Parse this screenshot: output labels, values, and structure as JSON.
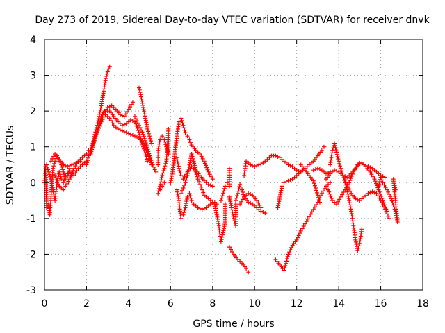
{
  "chart_data": {
    "type": "scatter",
    "title": "Day 273 of 2019, Sidereal Day-to-day VTEC variation (SDTVAR) for receiver dnvk",
    "xlabel": "GPS time / hours",
    "ylabel": "SDTVAR / TECUs",
    "xlim": [
      0,
      18
    ],
    "ylim": [
      -3,
      4
    ],
    "xticks": [
      0,
      2,
      4,
      6,
      8,
      10,
      12,
      14,
      16,
      18
    ],
    "yticks": [
      -3,
      -2,
      -1,
      0,
      1,
      2,
      3,
      4
    ],
    "grid": true,
    "marker": "plus",
    "color": "#ff0000",
    "tracks": [
      [
        [
          0.0,
          0.0
        ],
        [
          0.05,
          0.45
        ],
        [
          0.1,
          -0.7
        ]
      ],
      [
        [
          0.1,
          0.5
        ],
        [
          0.2,
          0.3
        ],
        [
          0.3,
          0.1
        ],
        [
          0.4,
          -0.2
        ],
        [
          0.5,
          -0.5
        ],
        [
          0.6,
          0.0
        ],
        [
          0.7,
          0.3
        ],
        [
          0.8,
          0.1
        ],
        [
          0.9,
          0.0
        ],
        [
          1.0,
          0.2
        ],
        [
          1.2,
          0.3
        ],
        [
          1.4,
          0.2
        ],
        [
          1.6,
          0.4
        ],
        [
          1.8,
          0.5
        ],
        [
          2.0,
          0.6
        ]
      ],
      [
        [
          0.2,
          -0.6
        ],
        [
          0.25,
          -0.9
        ],
        [
          0.3,
          -0.5
        ],
        [
          0.4,
          0.4
        ],
        [
          0.5,
          0.6
        ],
        [
          0.6,
          0.75
        ],
        [
          0.7,
          0.6
        ],
        [
          0.8,
          0.5
        ],
        [
          0.9,
          0.3
        ],
        [
          1.0,
          0.1
        ],
        [
          1.1,
          0.2
        ],
        [
          1.2,
          0.4
        ]
      ],
      [
        [
          0.3,
          0.6
        ],
        [
          0.5,
          0.8
        ],
        [
          0.7,
          0.65
        ],
        [
          0.9,
          0.5
        ],
        [
          1.1,
          0.45
        ],
        [
          1.3,
          0.5
        ],
        [
          1.5,
          0.55
        ],
        [
          1.7,
          0.6
        ]
      ],
      [
        [
          0.5,
          0.2
        ],
        [
          0.7,
          -0.1
        ],
        [
          0.9,
          -0.2
        ],
        [
          1.0,
          -0.1
        ],
        [
          1.2,
          0.1
        ],
        [
          1.4,
          0.4
        ],
        [
          1.6,
          0.6
        ],
        [
          1.8,
          0.7
        ],
        [
          2.0,
          0.8
        ],
        [
          2.1,
          0.9
        ]
      ],
      [
        [
          2.0,
          0.5
        ],
        [
          2.1,
          0.75
        ],
        [
          2.2,
          0.9
        ],
        [
          2.3,
          1.1
        ],
        [
          2.4,
          1.35
        ],
        [
          2.5,
          1.6
        ],
        [
          2.6,
          1.85
        ],
        [
          2.7,
          2.15
        ],
        [
          2.8,
          2.5
        ],
        [
          2.9,
          2.85
        ],
        [
          3.0,
          3.1
        ],
        [
          3.1,
          3.25
        ]
      ],
      [
        [
          2.2,
          0.8
        ],
        [
          2.4,
          1.25
        ],
        [
          2.6,
          1.6
        ],
        [
          2.8,
          1.95
        ],
        [
          3.0,
          2.1
        ],
        [
          3.2,
          2.15
        ],
        [
          3.4,
          2.05
        ],
        [
          3.6,
          1.9
        ],
        [
          3.8,
          1.85
        ],
        [
          4.0,
          2.05
        ],
        [
          4.2,
          2.25
        ]
      ],
      [
        [
          2.3,
          1.05
        ],
        [
          2.5,
          1.4
        ],
        [
          2.7,
          1.7
        ],
        [
          2.9,
          1.9
        ],
        [
          3.1,
          1.8
        ],
        [
          3.3,
          1.6
        ],
        [
          3.5,
          1.5
        ],
        [
          3.7,
          1.45
        ],
        [
          3.9,
          1.4
        ],
        [
          4.1,
          1.35
        ],
        [
          4.3,
          1.3
        ],
        [
          4.5,
          1.25
        ],
        [
          4.7,
          1.1
        ],
        [
          4.9,
          0.85
        ],
        [
          5.1,
          0.5
        ]
      ],
      [
        [
          2.5,
          1.6
        ],
        [
          2.7,
          1.85
        ],
        [
          2.9,
          2.0
        ],
        [
          3.1,
          2.0
        ],
        [
          3.3,
          1.85
        ],
        [
          3.5,
          1.7
        ],
        [
          3.7,
          1.6
        ],
        [
          3.9,
          1.65
        ],
        [
          4.1,
          1.75
        ],
        [
          4.3,
          1.7
        ],
        [
          4.5,
          1.4
        ],
        [
          4.7,
          1.0
        ],
        [
          4.9,
          0.6
        ]
      ],
      [
        [
          4.5,
          2.65
        ],
        [
          4.6,
          2.4
        ],
        [
          4.7,
          2.1
        ],
        [
          4.8,
          1.8
        ],
        [
          4.9,
          1.5
        ],
        [
          5.0,
          1.3
        ],
        [
          5.1,
          1.1
        ]
      ],
      [
        [
          4.3,
          1.85
        ],
        [
          4.5,
          1.6
        ],
        [
          4.7,
          1.35
        ],
        [
          4.85,
          1.05
        ],
        [
          5.0,
          0.75
        ],
        [
          5.15,
          0.5
        ],
        [
          5.3,
          0.3
        ]
      ],
      [
        [
          5.4,
          0.5
        ],
        [
          5.4,
          0.9
        ],
        [
          5.5,
          1.2
        ],
        [
          5.6,
          1.3
        ],
        [
          5.7,
          1.2
        ],
        [
          5.8,
          1.0
        ],
        [
          5.9,
          0.8
        ],
        [
          5.9,
          1.5
        ],
        [
          5.8,
          0.6
        ],
        [
          5.7,
          0.4
        ],
        [
          5.6,
          0.2
        ],
        [
          5.5,
          -0.1
        ],
        [
          5.4,
          -0.3
        ],
        [
          5.5,
          -0.2
        ],
        [
          5.6,
          -0.1
        ],
        [
          5.7,
          0.0
        ]
      ],
      [
        [
          6.0,
          0.0
        ],
        [
          6.1,
          0.3
        ],
        [
          6.2,
          0.8
        ],
        [
          6.3,
          1.3
        ],
        [
          6.4,
          1.7
        ],
        [
          6.5,
          1.8
        ],
        [
          6.6,
          1.6
        ],
        [
          6.7,
          1.4
        ],
        [
          6.8,
          1.3
        ],
        [
          6.9,
          1.2
        ],
        [
          7.0,
          1.05
        ],
        [
          7.2,
          0.9
        ],
        [
          7.4,
          0.8
        ],
        [
          7.6,
          0.6
        ],
        [
          7.8,
          0.3
        ],
        [
          8.0,
          0.1
        ]
      ],
      [
        [
          6.3,
          0.7
        ],
        [
          6.4,
          0.4
        ],
        [
          6.5,
          0.2
        ],
        [
          6.6,
          0.1
        ],
        [
          6.8,
          0.3
        ],
        [
          7.0,
          0.45
        ],
        [
          7.2,
          0.35
        ],
        [
          7.4,
          0.2
        ],
        [
          7.6,
          0.05
        ],
        [
          7.8,
          -0.05
        ],
        [
          8.0,
          -0.1
        ]
      ],
      [
        [
          6.3,
          -0.2
        ],
        [
          6.4,
          -0.5
        ],
        [
          6.45,
          -0.8
        ],
        [
          6.5,
          -1.0
        ],
        [
          6.6,
          -0.9
        ],
        [
          6.7,
          -0.7
        ],
        [
          6.8,
          -0.4
        ],
        [
          6.9,
          -0.3
        ],
        [
          7.0,
          -0.5
        ],
        [
          7.1,
          -0.6
        ],
        [
          7.3,
          -0.7
        ],
        [
          7.5,
          -0.75
        ],
        [
          7.7,
          -0.7
        ],
        [
          7.9,
          -0.6
        ],
        [
          8.1,
          -0.55
        ],
        [
          8.2,
          -0.6
        ]
      ],
      [
        [
          6.5,
          -0.3
        ],
        [
          6.6,
          -0.15
        ],
        [
          6.7,
          0.0
        ],
        [
          6.8,
          0.2
        ],
        [
          6.9,
          0.5
        ],
        [
          7.0,
          0.8
        ],
        [
          7.1,
          0.6
        ],
        [
          7.2,
          0.3
        ],
        [
          7.3,
          0.1
        ],
        [
          7.4,
          -0.05
        ],
        [
          7.5,
          -0.2
        ],
        [
          7.6,
          -0.35
        ],
        [
          7.8,
          -0.45
        ],
        [
          8.0,
          -0.55
        ]
      ],
      [
        [
          8.1,
          -0.6
        ],
        [
          8.2,
          -0.9
        ],
        [
          8.3,
          -1.2
        ],
        [
          8.35,
          -1.5
        ],
        [
          8.4,
          -1.65
        ],
        [
          8.5,
          -1.4
        ],
        [
          8.6,
          -1.1
        ],
        [
          8.6,
          -0.6
        ]
      ],
      [
        [
          8.4,
          -0.5
        ],
        [
          8.5,
          -0.3
        ],
        [
          8.6,
          -0.1
        ],
        [
          8.7,
          0.0
        ],
        [
          8.8,
          -0.1
        ],
        [
          8.8,
          0.4
        ]
      ],
      [
        [
          8.8,
          -0.4
        ],
        [
          8.9,
          -0.7
        ],
        [
          9.0,
          -1.0
        ],
        [
          9.1,
          -1.2
        ],
        [
          9.1,
          -0.6
        ]
      ],
      [
        [
          9.1,
          -0.5
        ],
        [
          9.2,
          -0.3
        ],
        [
          9.3,
          -0.05
        ],
        [
          9.4,
          -0.2
        ],
        [
          9.5,
          -0.4
        ],
        [
          9.7,
          -0.55
        ],
        [
          9.9,
          -0.6
        ],
        [
          10.1,
          -0.7
        ],
        [
          10.3,
          -0.8
        ],
        [
          10.5,
          -0.85
        ]
      ],
      [
        [
          9.3,
          -0.6
        ],
        [
          9.5,
          -0.4
        ],
        [
          9.7,
          -0.3
        ],
        [
          9.9,
          -0.35
        ],
        [
          10.1,
          -0.5
        ],
        [
          10.3,
          -0.7
        ]
      ],
      [
        [
          8.8,
          -1.8
        ],
        [
          9.0,
          -2.0
        ],
        [
          9.2,
          -2.15
        ],
        [
          9.4,
          -2.25
        ],
        [
          9.6,
          -2.4
        ],
        [
          9.7,
          -2.5
        ]
      ],
      [
        [
          9.5,
          0.2
        ],
        [
          9.6,
          0.6
        ],
        [
          9.8,
          0.5
        ],
        [
          10.0,
          0.45
        ],
        [
          10.2,
          0.5
        ],
        [
          10.4,
          0.55
        ],
        [
          10.6,
          0.65
        ],
        [
          10.8,
          0.75
        ],
        [
          11.0,
          0.75
        ],
        [
          11.2,
          0.7
        ],
        [
          11.4,
          0.6
        ],
        [
          11.6,
          0.5
        ],
        [
          11.8,
          0.45
        ],
        [
          12.0,
          0.35
        ],
        [
          12.2,
          0.3
        ]
      ],
      [
        [
          11.1,
          -0.7
        ],
        [
          11.2,
          -0.4
        ],
        [
          11.3,
          -0.1
        ],
        [
          11.4,
          0.0
        ],
        [
          11.6,
          0.05
        ],
        [
          11.8,
          0.1
        ],
        [
          12.0,
          0.2
        ],
        [
          12.2,
          0.3
        ],
        [
          12.4,
          0.4
        ],
        [
          12.6,
          0.5
        ],
        [
          12.8,
          0.6
        ],
        [
          13.0,
          0.75
        ],
        [
          13.2,
          0.9
        ],
        [
          13.3,
          1.0
        ]
      ],
      [
        [
          11.0,
          -2.15
        ],
        [
          11.2,
          -2.3
        ],
        [
          11.4,
          -2.45
        ],
        [
          11.6,
          -2.0
        ],
        [
          11.8,
          -1.75
        ],
        [
          12.0,
          -1.6
        ],
        [
          12.2,
          -1.35
        ],
        [
          12.4,
          -1.15
        ],
        [
          12.6,
          -0.95
        ],
        [
          12.8,
          -0.75
        ],
        [
          13.0,
          -0.55
        ],
        [
          13.2,
          -0.3
        ],
        [
          13.4,
          -0.1
        ],
        [
          13.6,
          0.0
        ]
      ],
      [
        [
          12.2,
          0.5
        ],
        [
          12.4,
          0.35
        ],
        [
          12.6,
          0.2
        ],
        [
          12.8,
          0.05
        ],
        [
          12.9,
          -0.15
        ],
        [
          13.0,
          -0.35
        ],
        [
          13.1,
          -0.55
        ]
      ],
      [
        [
          12.8,
          0.35
        ],
        [
          13.0,
          0.4
        ],
        [
          13.2,
          0.35
        ],
        [
          13.4,
          0.25
        ],
        [
          13.6,
          0.3
        ]
      ],
      [
        [
          13.6,
          0.5
        ],
        [
          13.7,
          0.9
        ],
        [
          13.8,
          1.1
        ],
        [
          13.9,
          0.85
        ],
        [
          14.0,
          0.6
        ],
        [
          14.1,
          0.4
        ],
        [
          14.2,
          0.2
        ],
        [
          14.3,
          0.0
        ],
        [
          14.4,
          -0.2
        ],
        [
          14.5,
          -0.5
        ],
        [
          14.6,
          -0.8
        ],
        [
          14.7,
          -1.2
        ],
        [
          14.8,
          -1.6
        ],
        [
          14.9,
          -1.9
        ],
        [
          15.0,
          -1.7
        ],
        [
          15.1,
          -1.3
        ]
      ],
      [
        [
          13.4,
          0.1
        ],
        [
          13.6,
          0.25
        ],
        [
          13.8,
          0.35
        ],
        [
          14.0,
          0.3
        ],
        [
          14.2,
          0.2
        ],
        [
          14.4,
          0.15
        ],
        [
          14.6,
          0.25
        ],
        [
          14.8,
          0.4
        ],
        [
          15.0,
          0.55
        ],
        [
          15.2,
          0.5
        ],
        [
          15.4,
          0.45
        ],
        [
          15.6,
          0.4
        ],
        [
          15.8,
          0.3
        ],
        [
          16.0,
          0.2
        ],
        [
          16.2,
          0.15
        ]
      ],
      [
        [
          13.5,
          -0.2
        ],
        [
          13.7,
          -0.5
        ],
        [
          13.9,
          -0.6
        ],
        [
          14.1,
          -0.4
        ],
        [
          14.3,
          -0.2
        ],
        [
          14.5,
          0.0
        ],
        [
          14.7,
          0.3
        ],
        [
          14.9,
          0.5
        ],
        [
          15.1,
          0.55
        ],
        [
          15.3,
          0.45
        ],
        [
          15.5,
          0.3
        ],
        [
          15.7,
          0.1
        ],
        [
          15.9,
          -0.2
        ],
        [
          16.1,
          -0.5
        ],
        [
          16.3,
          -0.8
        ]
      ],
      [
        [
          14.2,
          0.2
        ],
        [
          14.4,
          -0.05
        ],
        [
          14.6,
          -0.3
        ],
        [
          14.8,
          -0.45
        ],
        [
          15.0,
          -0.5
        ],
        [
          15.2,
          -0.4
        ],
        [
          15.4,
          -0.3
        ],
        [
          15.6,
          -0.25
        ],
        [
          15.8,
          -0.3
        ],
        [
          16.0,
          -0.5
        ],
        [
          16.2,
          -0.75
        ],
        [
          16.4,
          -1.0
        ]
      ],
      [
        [
          15.9,
          -0.1
        ],
        [
          16.0,
          0.15
        ],
        [
          16.1,
          0.0
        ],
        [
          16.3,
          -0.2
        ],
        [
          16.5,
          -0.45
        ],
        [
          16.7,
          -0.8
        ],
        [
          16.8,
          -1.1
        ],
        [
          16.6,
          0.1
        ],
        [
          16.7,
          -0.2
        ]
      ]
    ]
  }
}
